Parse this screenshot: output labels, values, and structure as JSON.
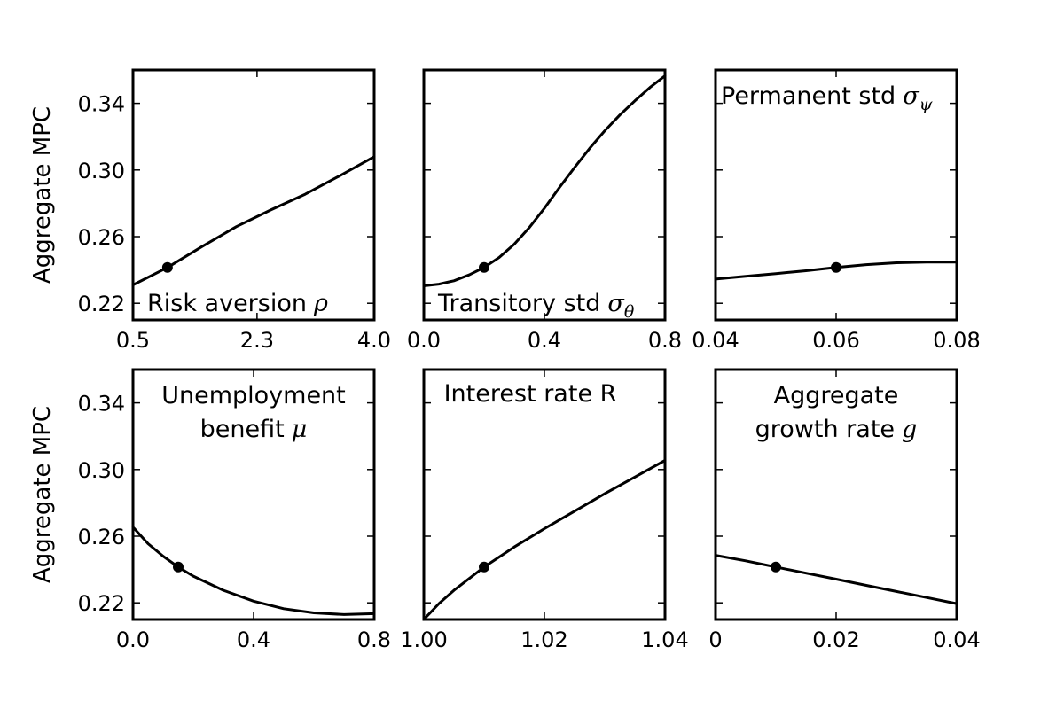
{
  "chart_data": [
    {
      "type": "line",
      "title_text": "Risk aversion",
      "title_symbol": "ρ",
      "title_sub": "",
      "ylabel": "Aggregate MPC",
      "xlim": [
        0.5,
        4.0
      ],
      "ylim": [
        0.21,
        0.36
      ],
      "xticks": [
        0.5,
        2.3,
        4.0
      ],
      "xtick_labels": [
        "0.5",
        "2.3",
        "4.0"
      ],
      "yticks": [
        0.22,
        0.26,
        0.3,
        0.34
      ],
      "ytick_labels": [
        "0.22",
        "0.26",
        "0.30",
        "0.34"
      ],
      "x": [
        0.5,
        1.0,
        1.5,
        2.0,
        2.5,
        3.0,
        3.5,
        4.0
      ],
      "y": [
        0.231,
        0.2415,
        0.254,
        0.266,
        0.276,
        0.2855,
        0.2965,
        0.308
      ],
      "marker": {
        "x": 1.0,
        "y": 0.2415
      }
    },
    {
      "type": "line",
      "title_text": "Transitory std",
      "title_symbol": "σ",
      "title_sub": "θ",
      "ylabel": "",
      "xlim": [
        0.0,
        0.8
      ],
      "ylim": [
        0.21,
        0.36
      ],
      "xticks": [
        0.0,
        0.4,
        0.8
      ],
      "xtick_labels": [
        "0.0",
        "0.4",
        "0.8"
      ],
      "yticks": [
        0.22,
        0.26,
        0.3,
        0.34
      ],
      "ytick_labels": [],
      "x": [
        0.0,
        0.05,
        0.1,
        0.15,
        0.2,
        0.25,
        0.3,
        0.35,
        0.4,
        0.45,
        0.5,
        0.55,
        0.6,
        0.65,
        0.7,
        0.75,
        0.8
      ],
      "y": [
        0.2305,
        0.2315,
        0.2335,
        0.237,
        0.2415,
        0.2475,
        0.2555,
        0.2655,
        0.277,
        0.2895,
        0.3015,
        0.313,
        0.3235,
        0.333,
        0.3415,
        0.3495,
        0.3565
      ],
      "marker": {
        "x": 0.2,
        "y": 0.2415
      }
    },
    {
      "type": "line",
      "title_text": "Permanent std",
      "title_symbol": "σ",
      "title_sub": "ψ",
      "ylabel": "",
      "xlim": [
        0.04,
        0.08
      ],
      "ylim": [
        0.21,
        0.36
      ],
      "xticks": [
        0.04,
        0.06,
        0.08
      ],
      "xtick_labels": [
        "0.04",
        "0.06",
        "0.08"
      ],
      "yticks": [
        0.22,
        0.26,
        0.3,
        0.34
      ],
      "ytick_labels": [],
      "x": [
        0.04,
        0.045,
        0.05,
        0.055,
        0.06,
        0.065,
        0.07,
        0.075,
        0.08
      ],
      "y": [
        0.2345,
        0.2362,
        0.2378,
        0.2395,
        0.2415,
        0.2432,
        0.2443,
        0.2447,
        0.2447
      ],
      "marker": {
        "x": 0.06,
        "y": 0.2415
      }
    },
    {
      "type": "line",
      "title_text": "Unemployment",
      "title_text2": "benefit",
      "title_symbol": "μ",
      "title_sub": "",
      "ylabel": "Aggregate MPC",
      "xlim": [
        0.0,
        0.8
      ],
      "ylim": [
        0.21,
        0.36
      ],
      "xticks": [
        0.0,
        0.4,
        0.8
      ],
      "xtick_labels": [
        "0.0",
        "0.4",
        "0.8"
      ],
      "yticks": [
        0.22,
        0.26,
        0.3,
        0.34
      ],
      "ytick_labels": [
        "0.22",
        "0.26",
        "0.30",
        "0.34"
      ],
      "x": [
        0.0,
        0.05,
        0.1,
        0.15,
        0.2,
        0.3,
        0.4,
        0.5,
        0.6,
        0.7,
        0.8
      ],
      "y": [
        0.2655,
        0.2555,
        0.248,
        0.2415,
        0.236,
        0.2275,
        0.221,
        0.2165,
        0.214,
        0.213,
        0.2135
      ],
      "marker": {
        "x": 0.15,
        "y": 0.2415
      }
    },
    {
      "type": "line",
      "title_text": "Interest rate R",
      "title_symbol": "",
      "title_sub": "",
      "ylabel": "",
      "xlim": [
        1.0,
        1.04
      ],
      "ylim": [
        0.21,
        0.36
      ],
      "xticks": [
        1.0,
        1.02,
        1.04
      ],
      "xtick_labels": [
        "1.00",
        "1.02",
        "1.04"
      ],
      "yticks": [
        0.22,
        0.26,
        0.3,
        0.34
      ],
      "ytick_labels": [],
      "x": [
        1.0,
        1.0025,
        1.005,
        1.0075,
        1.01,
        1.015,
        1.02,
        1.025,
        1.03,
        1.035,
        1.04
      ],
      "y": [
        0.21,
        0.2195,
        0.2275,
        0.2345,
        0.2415,
        0.2535,
        0.2645,
        0.275,
        0.2855,
        0.2955,
        0.3055
      ],
      "marker": {
        "x": 1.01,
        "y": 0.2415
      }
    },
    {
      "type": "line",
      "title_text": "Aggregate",
      "title_text2": "growth rate",
      "title_symbol": "g",
      "title_sub": "",
      "ylabel": "",
      "xlim": [
        0.0,
        0.04
      ],
      "ylim": [
        0.21,
        0.36
      ],
      "xticks": [
        0.0,
        0.02,
        0.04
      ],
      "xtick_labels": [
        "0",
        "0.02",
        "0.04"
      ],
      "yticks": [
        0.22,
        0.26,
        0.3,
        0.34
      ],
      "ytick_labels": [],
      "x": [
        0.0,
        0.005,
        0.01,
        0.015,
        0.02,
        0.025,
        0.03,
        0.035,
        0.04
      ],
      "y": [
        0.2485,
        0.2452,
        0.2415,
        0.2378,
        0.2342,
        0.2305,
        0.2268,
        0.2232,
        0.2195
      ],
      "marker": {
        "x": 0.01,
        "y": 0.2415
      }
    }
  ]
}
